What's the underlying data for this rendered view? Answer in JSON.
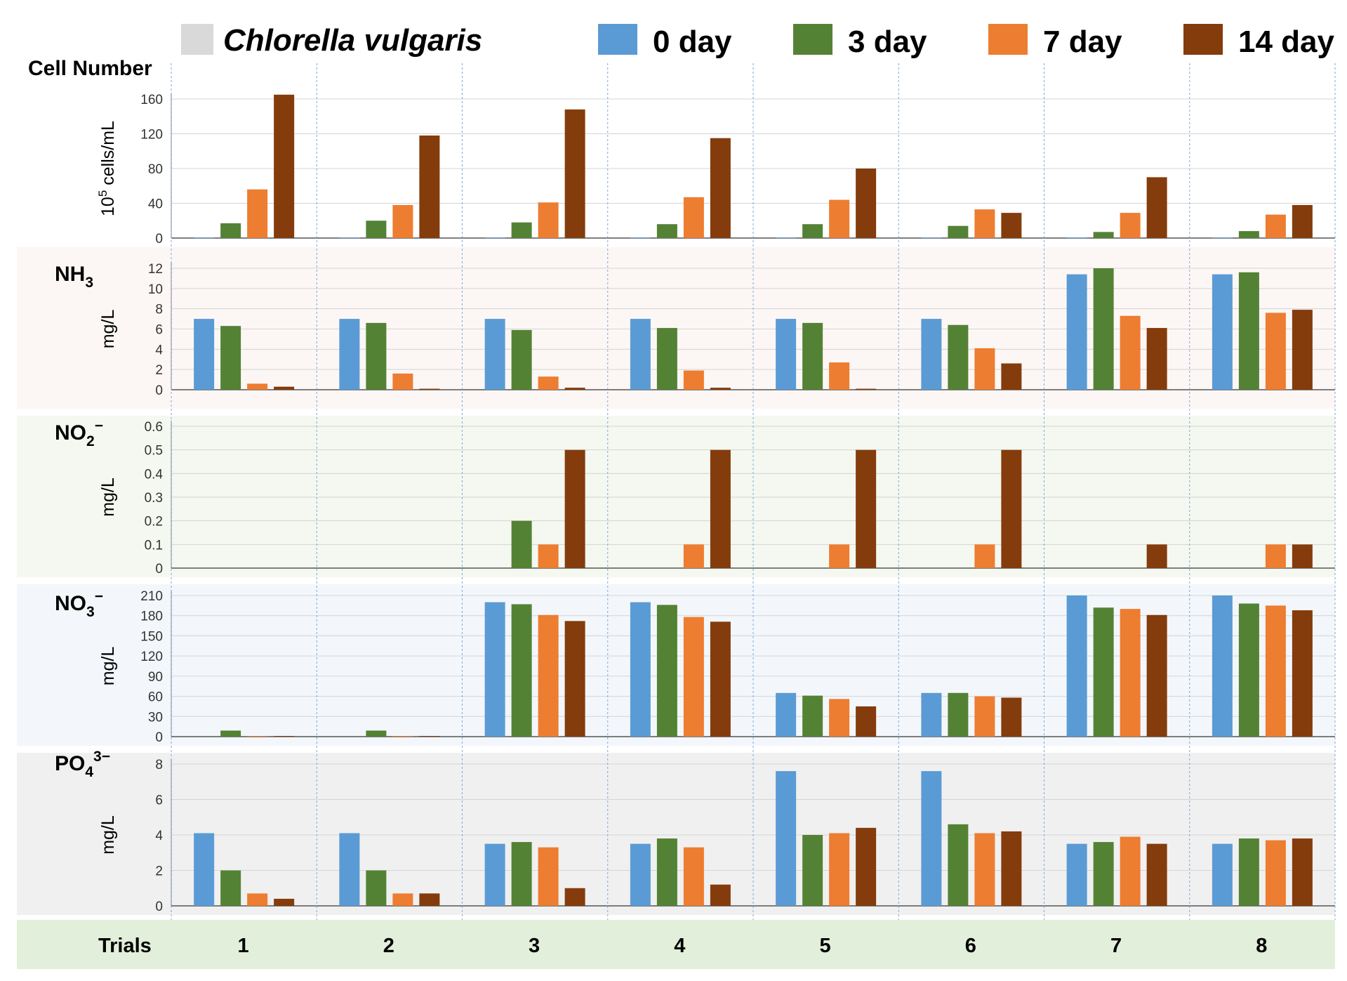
{
  "legend": {
    "species": "Chlorella vulgaris",
    "species_color": "#d9d9d9",
    "series": [
      {
        "label": "0 day",
        "color": "#5b9bd5"
      },
      {
        "label": "3 day",
        "color": "#548235"
      },
      {
        "label": "7 day",
        "color": "#ed7d31"
      },
      {
        "label": "14 day",
        "color": "#843c0c"
      }
    ]
  },
  "trials_label": "Trials",
  "chart_data": [
    {
      "type": "bar",
      "title": "Cell Number",
      "title_sub": "",
      "title_sup": "",
      "ylabel": "10",
      "ylabel_sup": "5",
      "ylabel_rest": " cells/mL",
      "ylim": [
        0,
        160
      ],
      "yticks": [
        "0",
        "40",
        "80",
        "120",
        "160"
      ],
      "categories": [
        "1",
        "2",
        "3",
        "4",
        "5",
        "6",
        "7",
        "8"
      ],
      "bg": "#ffffff",
      "series": [
        {
          "name": "0 day",
          "values": [
            0.5,
            0.5,
            0.5,
            0.5,
            0.5,
            0.5,
            0.5,
            0.5
          ]
        },
        {
          "name": "3 day",
          "values": [
            17,
            20,
            18,
            16,
            16,
            14,
            7,
            8
          ]
        },
        {
          "name": "7 day",
          "values": [
            56,
            38,
            41,
            47,
            44,
            33,
            29,
            27
          ]
        },
        {
          "name": "14 day",
          "values": [
            165,
            118,
            148,
            115,
            80,
            29,
            70,
            38
          ]
        }
      ]
    },
    {
      "type": "bar",
      "title": "NH",
      "title_sub": "3",
      "title_sup": "",
      "ylabel": "mg/L",
      "ylabel_sup": "",
      "ylabel_rest": "",
      "ylim": [
        0,
        12
      ],
      "yticks": [
        "0",
        "2",
        "4",
        "6",
        "8",
        "10",
        "12"
      ],
      "categories": [
        "1",
        "2",
        "3",
        "4",
        "5",
        "6",
        "7",
        "8"
      ],
      "bg": "#fcf7f5",
      "series": [
        {
          "name": "0 day",
          "values": [
            7.0,
            7.0,
            7.0,
            7.0,
            7.0,
            7.0,
            11.4,
            11.4
          ]
        },
        {
          "name": "3 day",
          "values": [
            6.3,
            6.6,
            5.9,
            6.1,
            6.6,
            6.4,
            12.0,
            11.6
          ]
        },
        {
          "name": "7 day",
          "values": [
            0.6,
            1.6,
            1.3,
            1.9,
            2.7,
            4.1,
            7.3,
            7.6
          ]
        },
        {
          "name": "14 day",
          "values": [
            0.3,
            0.1,
            0.2,
            0.2,
            0.1,
            2.6,
            6.1,
            7.9
          ]
        }
      ]
    },
    {
      "type": "bar",
      "title": "NO",
      "title_sub": "2",
      "title_sup": "−",
      "ylabel": "mg/L",
      "ylabel_sup": "",
      "ylabel_rest": "",
      "ylim": [
        0,
        0.6
      ],
      "yticks": [
        "0",
        "0.1",
        "0.2",
        "0.3",
        "0.4",
        "0.5",
        "0.6"
      ],
      "categories": [
        "1",
        "2",
        "3",
        "4",
        "5",
        "6",
        "7",
        "8"
      ],
      "bg": "#f4f8f0",
      "series": [
        {
          "name": "0 day",
          "values": [
            0,
            0,
            0,
            0,
            0,
            0,
            0,
            0
          ]
        },
        {
          "name": "3 day",
          "values": [
            0,
            0,
            0.2,
            0,
            0,
            0,
            0,
            0
          ]
        },
        {
          "name": "7 day",
          "values": [
            0,
            0,
            0.1,
            0.1,
            0.1,
            0.1,
            0,
            0.1
          ]
        },
        {
          "name": "14 day",
          "values": [
            0,
            0,
            0.5,
            0.5,
            0.5,
            0.5,
            0.1,
            0.1
          ]
        }
      ]
    },
    {
      "type": "bar",
      "title": "NO",
      "title_sub": "3",
      "title_sup": "−",
      "ylabel": "mg/L",
      "ylabel_sup": "",
      "ylabel_rest": "",
      "ylim": [
        0,
        210
      ],
      "yticks": [
        "0",
        "30",
        "60",
        "90",
        "120",
        "150",
        "180",
        "210"
      ],
      "categories": [
        "1",
        "2",
        "3",
        "4",
        "5",
        "6",
        "7",
        "8"
      ],
      "bg": "#f3f7fb",
      "series": [
        {
          "name": "0 day",
          "values": [
            0,
            0,
            200,
            200,
            65,
            65,
            210,
            210
          ]
        },
        {
          "name": "3 day",
          "values": [
            9,
            9,
            197,
            196,
            61,
            65,
            192,
            198
          ]
        },
        {
          "name": "7 day",
          "values": [
            1,
            1,
            181,
            178,
            56,
            60,
            190,
            195
          ]
        },
        {
          "name": "14 day",
          "values": [
            1,
            1,
            172,
            171,
            45,
            58,
            181,
            188
          ]
        }
      ]
    },
    {
      "type": "bar",
      "title": "PO",
      "title_sub": "4",
      "title_sup": "3−",
      "ylabel": "mg/L",
      "ylabel_sup": "",
      "ylabel_rest": "",
      "ylim": [
        0,
        8
      ],
      "yticks": [
        "0",
        "2",
        "4",
        "6",
        "8"
      ],
      "categories": [
        "1",
        "2",
        "3",
        "4",
        "5",
        "6",
        "7",
        "8"
      ],
      "bg": "#f0f0f0",
      "series": [
        {
          "name": "0 day",
          "values": [
            4.1,
            4.1,
            3.5,
            3.5,
            7.6,
            7.6,
            3.5,
            3.5
          ]
        },
        {
          "name": "3 day",
          "values": [
            2.0,
            2.0,
            3.6,
            3.8,
            4.0,
            4.6,
            3.6,
            3.8
          ]
        },
        {
          "name": "7 day",
          "values": [
            0.7,
            0.7,
            3.3,
            3.3,
            4.1,
            4.1,
            3.9,
            3.7
          ]
        },
        {
          "name": "14 day",
          "values": [
            0.4,
            0.7,
            1.0,
            1.2,
            4.4,
            4.2,
            3.5,
            3.8
          ]
        }
      ]
    }
  ]
}
